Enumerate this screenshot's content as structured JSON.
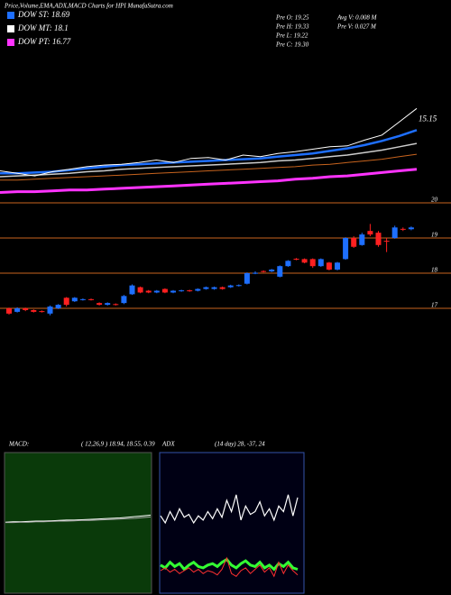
{
  "header": {
    "title": "Price,Volume,EMA,ADX,MACD Charts for HPI MunafaSutra.com",
    "legend": [
      {
        "label": "DOW ST: 18.69",
        "color": "#1e6fff"
      },
      {
        "label": "DOW MT: 18.1",
        "color": "#ffffff"
      },
      {
        "label": "DOW PT: 16.77",
        "color": "#ff33ff"
      }
    ],
    "info": [
      "Pre  O: 19.25",
      "Pre  H: 19.33",
      "Pre  L: 19.22",
      "Pre  C: 19.30",
      "Avg V: 0.008 M",
      "Pre  V: 0.027 M"
    ]
  },
  "chart_data": [
    {
      "type": "line",
      "ylim": [
        14.2,
        15.5
      ],
      "annotations": [
        {
          "text": "15.15",
          "value": 15.15
        }
      ],
      "series": [
        {
          "color": "#ff33ff",
          "width": 3,
          "values": [
            14.27,
            14.28,
            14.28,
            14.29,
            14.3,
            14.3,
            14.31,
            14.32,
            14.33,
            14.34,
            14.35,
            14.36,
            14.37,
            14.38,
            14.39,
            14.4,
            14.41,
            14.43,
            14.44,
            14.46,
            14.47,
            14.49,
            14.51,
            14.53,
            14.55
          ]
        },
        {
          "color": "#c8641e",
          "width": 1,
          "values": [
            14.42,
            14.42,
            14.43,
            14.44,
            14.45,
            14.46,
            14.47,
            14.48,
            14.49,
            14.5,
            14.51,
            14.52,
            14.53,
            14.54,
            14.55,
            14.56,
            14.57,
            14.58,
            14.6,
            14.61,
            14.63,
            14.65,
            14.67,
            14.7,
            14.73
          ]
        },
        {
          "color": "#cccccc",
          "width": 1.5,
          "values": [
            14.46,
            14.47,
            14.48,
            14.49,
            14.5,
            14.52,
            14.53,
            14.55,
            14.56,
            14.57,
            14.58,
            14.59,
            14.6,
            14.61,
            14.62,
            14.63,
            14.65,
            14.66,
            14.68,
            14.7,
            14.72,
            14.75,
            14.78,
            14.82,
            14.86
          ]
        },
        {
          "color": "#1e6fff",
          "width": 2.5,
          "values": [
            14.5,
            14.5,
            14.51,
            14.52,
            14.54,
            14.56,
            14.58,
            14.6,
            14.61,
            14.62,
            14.63,
            14.64,
            14.65,
            14.66,
            14.67,
            14.68,
            14.7,
            14.72,
            14.74,
            14.77,
            14.8,
            14.84,
            14.89,
            14.95,
            15.02
          ]
        },
        {
          "color": "#ffffff",
          "width": 1,
          "values": [
            14.53,
            14.5,
            14.47,
            14.52,
            14.55,
            14.58,
            14.6,
            14.61,
            14.63,
            14.66,
            14.63,
            14.68,
            14.69,
            14.66,
            14.72,
            14.7,
            14.74,
            14.76,
            14.79,
            14.82,
            14.83,
            14.9,
            14.96,
            15.12,
            15.28
          ]
        }
      ]
    },
    {
      "type": "candlestick",
      "ylim": [
        16.6,
        20
      ],
      "yticks": [
        20,
        19,
        18,
        17
      ],
      "up_color": "#1e6fff",
      "down_color": "#ff2020",
      "grid_color": "#c8641e",
      "open": [
        17.0,
        16.9,
        17.0,
        16.95,
        16.92,
        16.85,
        17.0,
        17.3,
        17.2,
        17.24,
        17.26,
        17.15,
        17.1,
        17.12,
        17.15,
        17.4,
        17.6,
        17.5,
        17.45,
        17.55,
        17.45,
        17.49,
        17.51,
        17.5,
        17.55,
        17.55,
        17.6,
        17.6,
        17.64,
        17.7,
        17.99,
        18.06,
        18.05,
        17.9,
        18.2,
        18.41,
        18.4,
        18.4,
        18.2,
        18.3,
        18.1,
        18.4,
        19.0,
        18.8,
        19.2,
        19.15,
        18.92,
        19.0,
        19.26,
        19.25
      ],
      "high": [
        17.02,
        17.03,
        17.02,
        16.97,
        16.94,
        17.08,
        17.12,
        17.32,
        17.32,
        17.28,
        17.28,
        17.17,
        17.17,
        17.14,
        17.38,
        17.68,
        17.62,
        17.52,
        17.52,
        17.57,
        17.52,
        17.53,
        17.53,
        17.57,
        17.62,
        17.62,
        17.62,
        17.67,
        17.68,
        18.02,
        18.05,
        18.08,
        18.12,
        18.22,
        18.37,
        18.43,
        18.42,
        18.42,
        18.42,
        18.32,
        18.32,
        19.02,
        19.05,
        19.15,
        19.4,
        19.2,
        19.0,
        19.35,
        19.3,
        19.33
      ],
      "low": [
        16.82,
        16.88,
        16.92,
        16.88,
        16.88,
        16.8,
        16.98,
        17.05,
        17.18,
        17.22,
        17.22,
        17.08,
        17.08,
        17.08,
        17.12,
        17.38,
        17.43,
        17.43,
        17.43,
        17.43,
        17.43,
        17.47,
        17.47,
        17.48,
        17.53,
        17.53,
        17.53,
        17.58,
        17.62,
        17.68,
        17.97,
        18.02,
        18.03,
        17.88,
        18.18,
        18.37,
        18.28,
        18.15,
        18.18,
        18.08,
        18.08,
        18.38,
        18.72,
        18.78,
        19.05,
        18.75,
        18.6,
        18.98,
        19.2,
        19.22
      ],
      "close": [
        16.85,
        17.0,
        16.95,
        16.9,
        16.9,
        17.05,
        17.1,
        17.1,
        17.3,
        17.26,
        17.24,
        17.1,
        17.15,
        17.1,
        17.35,
        17.65,
        17.45,
        17.45,
        17.5,
        17.45,
        17.5,
        17.51,
        17.49,
        17.55,
        17.6,
        17.6,
        17.55,
        17.65,
        17.66,
        18.0,
        18.01,
        18.04,
        18.1,
        18.2,
        18.35,
        18.39,
        18.3,
        18.2,
        18.4,
        18.1,
        18.3,
        19.0,
        18.75,
        19.1,
        19.1,
        18.8,
        18.9,
        19.3,
        19.24,
        19.3
      ]
    },
    {
      "type": "macd",
      "title": "MACD:",
      "subtitle": "( 12,26,9 ) 18.94, 18.55, 0.39",
      "ylim": [
        -2,
        2
      ],
      "series": [
        {
          "color": "#ffffff",
          "values": [
            0.02,
            0.03,
            0.03,
            0.04,
            0.05,
            0.05,
            0.06,
            0.07,
            0.08,
            0.08,
            0.09,
            0.1,
            0.11,
            0.12,
            0.13,
            0.14,
            0.16,
            0.18,
            0.2,
            0.22
          ]
        },
        {
          "color": "#aaaaaa",
          "values": [
            0.01,
            0.01,
            0.02,
            0.02,
            0.03,
            0.03,
            0.04,
            0.05,
            0.05,
            0.06,
            0.07,
            0.07,
            0.08,
            0.09,
            0.1,
            0.11,
            0.12,
            0.13,
            0.15,
            0.17
          ]
        }
      ]
    },
    {
      "type": "adx",
      "title": "ADX",
      "subtitle": "(14 day) 28, -37, 24",
      "ylim": [
        0,
        100
      ],
      "series": [
        {
          "color": "#ffffff",
          "width": 1.2,
          "values": [
            55,
            50,
            58,
            52,
            60,
            54,
            56,
            50,
            55,
            52,
            58,
            53,
            60,
            54,
            66,
            58,
            70,
            52,
            62,
            56,
            58,
            65,
            55,
            60,
            52,
            62,
            58,
            70,
            55,
            68
          ]
        },
        {
          "color": "#33ff33",
          "width": 3,
          "values": [
            20,
            18,
            22,
            19,
            21,
            17,
            20,
            22,
            19,
            18,
            20,
            21,
            19,
            22,
            24,
            20,
            18,
            21,
            23,
            20,
            19,
            22,
            18,
            20,
            17,
            21,
            19,
            22,
            18,
            17
          ]
        },
        {
          "color": "#ff3030",
          "width": 1,
          "values": [
            16,
            18,
            15,
            17,
            14,
            16,
            18,
            15,
            17,
            14,
            16,
            15,
            13,
            17,
            25,
            14,
            12,
            16,
            18,
            14,
            17,
            20,
            15,
            18,
            12,
            22,
            14,
            20,
            16,
            13
          ]
        }
      ]
    }
  ]
}
